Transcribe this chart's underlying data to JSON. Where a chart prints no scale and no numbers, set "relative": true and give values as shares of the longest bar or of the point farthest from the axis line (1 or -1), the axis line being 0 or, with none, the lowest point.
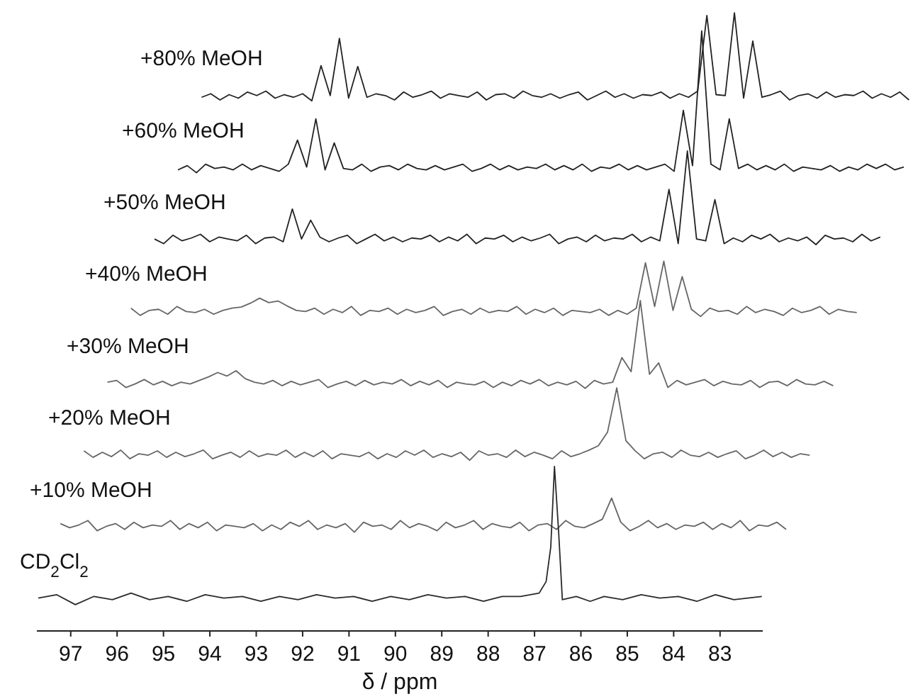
{
  "chart_data": [
    {
      "type": "line",
      "relative": true,
      "tick_labels": false,
      "categories": [
        null,
        null,
        null,
        null,
        null,
        null,
        null,
        null,
        null,
        null,
        null,
        null,
        null,
        null,
        null,
        null,
        null,
        null,
        null,
        null,
        null,
        null,
        null,
        null,
        null,
        null,
        null,
        null,
        null,
        null,
        null,
        null,
        null,
        null,
        null,
        null,
        null,
        null,
        null,
        null,
        null,
        null,
        null,
        null,
        null,
        null,
        null,
        null,
        null,
        null,
        null,
        null,
        null,
        null,
        null,
        null,
        null,
        null,
        null,
        null,
        null,
        null,
        null,
        null,
        null,
        null,
        null,
        null,
        null,
        null,
        null,
        null,
        null,
        null,
        null,
        null,
        null,
        null
      ],
      "series": [
        {
          "name": "+80% MeOH",
          "color": "#222222",
          "values": [
            0.04,
            0.08,
            0.01,
            0.07,
            0.03,
            0.1,
            0.06,
            0.11,
            0.03,
            0.07,
            0.04,
            0.08,
            0,
            0.4,
            0.06,
            0.71,
            0.03,
            0.39,
            0.04,
            0.08,
            0.06,
            0.01,
            0.1,
            0.04,
            0.07,
            0.11,
            0.03,
            0.08,
            0.06,
            0.04,
            0.1,
            0.01,
            0.07,
            0.08,
            0.03,
            0.11,
            0.06,
            0.04,
            0.08,
            0.03,
            0.07,
            0.1,
            0.01,
            0.06,
            0.11,
            0.04,
            0.08,
            0.03,
            0.07,
            0.06,
            0.1,
            0.03,
            0.08,
            0.04,
            0.11,
            0.97,
            0.07,
            0.06,
            1,
            0.03,
            0.68,
            0.04,
            0.07,
            0.11,
            0.01,
            0.06,
            0.08,
            0.03,
            0.1,
            0.04,
            0.07,
            0.06,
            0.11,
            0.03,
            0.08,
            0.04,
            0.1,
            0.01
          ]
        }
      ]
    },
    {
      "type": "line",
      "relative": true,
      "tick_labels": false,
      "categories": [
        null,
        null,
        null,
        null,
        null,
        null,
        null,
        null,
        null,
        null,
        null,
        null,
        null,
        null,
        null,
        null,
        null,
        null,
        null,
        null,
        null,
        null,
        null,
        null,
        null,
        null,
        null,
        null,
        null,
        null,
        null,
        null,
        null,
        null,
        null,
        null,
        null,
        null,
        null,
        null,
        null,
        null,
        null,
        null,
        null,
        null,
        null,
        null,
        null,
        null,
        null,
        null,
        null,
        null,
        null,
        null,
        null,
        null,
        null,
        null,
        null,
        null,
        null,
        null,
        null,
        null,
        null,
        null,
        null,
        null,
        null,
        null,
        null,
        null,
        null,
        null,
        null,
        null,
        null,
        null
      ],
      "series": [
        {
          "name": "+60% MeOH",
          "color": "#222222",
          "values": [
            0.02,
            0.05,
            0,
            0.06,
            0.03,
            0.04,
            0.02,
            0.06,
            0.02,
            0.05,
            0.03,
            0.01,
            0.06,
            0.23,
            0.04,
            0.38,
            0.02,
            0.21,
            0.03,
            0.02,
            0.06,
            0.01,
            0.04,
            0.05,
            0.02,
            0.06,
            0.03,
            0.02,
            0.05,
            0.02,
            0.04,
            0.06,
            0.01,
            0.03,
            0.06,
            0.02,
            0.05,
            0.02,
            0.04,
            0.03,
            0.06,
            0.02,
            0.05,
            0.02,
            0.06,
            0.01,
            0.04,
            0.03,
            0.06,
            0.02,
            0.05,
            0.02,
            0.04,
            0.06,
            0.01,
            0.44,
            0.05,
            1,
            0.06,
            0.02,
            0.38,
            0.03,
            0.06,
            0.02,
            0.05,
            0.02,
            0.06,
            0.01,
            0.04,
            0.03,
            0.02,
            0.05,
            0.01,
            0.04,
            0.02,
            0.06,
            0.03,
            0.06,
            0.02,
            0.04
          ]
        }
      ]
    },
    {
      "type": "line",
      "relative": true,
      "tick_labels": false,
      "categories": [
        null,
        null,
        null,
        null,
        null,
        null,
        null,
        null,
        null,
        null,
        null,
        null,
        null,
        null,
        null,
        null,
        null,
        null,
        null,
        null,
        null,
        null,
        null,
        null,
        null,
        null,
        null,
        null,
        null,
        null,
        null,
        null,
        null,
        null,
        null,
        null,
        null,
        null,
        null,
        null,
        null,
        null,
        null,
        null,
        null,
        null,
        null,
        null,
        null,
        null,
        null,
        null,
        null,
        null,
        null,
        null,
        null,
        null,
        null,
        null,
        null,
        null,
        null,
        null,
        null,
        null,
        null,
        null,
        null,
        null,
        null,
        null,
        null,
        null,
        null,
        null,
        null,
        null,
        null,
        null
      ],
      "series": [
        {
          "name": "+50% MeOH",
          "color": "#222222",
          "values": [
            0.06,
            0.01,
            0.1,
            0.04,
            0.07,
            0.11,
            0.03,
            0.08,
            0.06,
            0.04,
            0.1,
            0.01,
            0.07,
            0.08,
            0.03,
            0.38,
            0.06,
            0.26,
            0.08,
            0.03,
            0.07,
            0.1,
            0.01,
            0.06,
            0.11,
            0.04,
            0.08,
            0.03,
            0.07,
            0.06,
            0.1,
            0.03,
            0.08,
            0.04,
            0.11,
            0.01,
            0.07,
            0.06,
            0.1,
            0.03,
            0.08,
            0.04,
            0.07,
            0.11,
            0.01,
            0.06,
            0.08,
            0.03,
            0.1,
            0.04,
            0.07,
            0.06,
            0.11,
            0.03,
            0.08,
            0.04,
            0.59,
            0.01,
            1,
            0.06,
            0.04,
            0.48,
            0.01,
            0.07,
            0.03,
            0.1,
            0.06,
            0.11,
            0.03,
            0.07,
            0.04,
            0.08,
            0,
            0.1,
            0.06,
            0.07,
            0.03,
            0.11,
            0.04,
            0.08
          ]
        }
      ]
    },
    {
      "type": "line",
      "relative": true,
      "tick_labels": false,
      "categories": [
        null,
        null,
        null,
        null,
        null,
        null,
        null,
        null,
        null,
        null,
        null,
        null,
        null,
        null,
        null,
        null,
        null,
        null,
        null,
        null,
        null,
        null,
        null,
        null,
        null,
        null,
        null,
        null,
        null,
        null,
        null,
        null,
        null,
        null,
        null,
        null,
        null,
        null,
        null,
        null,
        null,
        null,
        null,
        null,
        null,
        null,
        null,
        null,
        null,
        null,
        null,
        null,
        null,
        null,
        null,
        null,
        null,
        null,
        null,
        null,
        null,
        null,
        null,
        null,
        null,
        null,
        null,
        null,
        null,
        null,
        null,
        null,
        null,
        null,
        null,
        null,
        null,
        null,
        null,
        null
      ],
      "series": [
        {
          "name": "+40% MeOH",
          "color": "#666666",
          "values": [
            0.15,
            0.02,
            0.11,
            0.13,
            0.04,
            0.18,
            0.09,
            0.07,
            0.13,
            0.04,
            0.11,
            0.15,
            0.17,
            0.24,
            0.33,
            0.25,
            0.28,
            0.19,
            0.11,
            0.09,
            0.15,
            0.04,
            0.13,
            0.07,
            0.18,
            0.02,
            0.11,
            0.09,
            0.15,
            0.04,
            0.13,
            0.07,
            0.11,
            0.18,
            0.02,
            0.09,
            0.13,
            0.04,
            0.15,
            0.07,
            0.11,
            0.09,
            0.18,
            0.04,
            0.13,
            0.07,
            0.15,
            0.02,
            0.11,
            0.09,
            0.07,
            0.13,
            0.02,
            0.11,
            0.04,
            0.15,
            0.97,
            0.18,
            1,
            0.11,
            0.72,
            0.13,
            0,
            0.15,
            0.09,
            0.11,
            0.04,
            0.18,
            0.07,
            0.13,
            0.09,
            0.02,
            0.15,
            0.07,
            0.11,
            0.18,
            0.04,
            0.13,
            0.09,
            0.07
          ]
        }
      ]
    },
    {
      "type": "line",
      "relative": true,
      "tick_labels": false,
      "categories": [
        null,
        null,
        null,
        null,
        null,
        null,
        null,
        null,
        null,
        null,
        null,
        null,
        null,
        null,
        null,
        null,
        null,
        null,
        null,
        null,
        null,
        null,
        null,
        null,
        null,
        null,
        null,
        null,
        null,
        null,
        null,
        null,
        null,
        null,
        null,
        null,
        null,
        null,
        null,
        null,
        null,
        null,
        null,
        null,
        null,
        null,
        null,
        null,
        null,
        null,
        null,
        null,
        null,
        null,
        null,
        null,
        null,
        null,
        null,
        null,
        null,
        null,
        null,
        null,
        null,
        null,
        null,
        null,
        null,
        null,
        null,
        null,
        null,
        null,
        null,
        null,
        null,
        null,
        null,
        null
      ],
      "series": [
        {
          "name": "+30% MeOH",
          "color": "#666666",
          "values": [
            0.07,
            0.09,
            0.01,
            0.05,
            0.1,
            0.04,
            0.08,
            0.03,
            0.07,
            0.05,
            0.09,
            0.13,
            0.18,
            0.14,
            0.2,
            0.11,
            0.07,
            0.05,
            0.09,
            0.03,
            0.08,
            0.04,
            0.07,
            0.1,
            0.01,
            0.05,
            0.08,
            0.03,
            0.09,
            0.04,
            0.07,
            0.05,
            0.1,
            0.03,
            0.08,
            0.04,
            0.09,
            0.01,
            0.07,
            0.05,
            0.04,
            0.08,
            0.01,
            0.07,
            0.03,
            0.09,
            0.05,
            0.1,
            0.03,
            0.07,
            0.04,
            0.08,
            0,
            0.09,
            0.05,
            0.07,
            0.35,
            0.19,
            1,
            0.16,
            0.29,
            0.01,
            0.09,
            0.04,
            0.07,
            0.1,
            0.03,
            0.08,
            0.05,
            0.04,
            0.09,
            0.01,
            0.07,
            0.08,
            0.03,
            0.1,
            0.05,
            0.04,
            0.08,
            0.03
          ]
        }
      ]
    },
    {
      "type": "line",
      "relative": true,
      "tick_labels": false,
      "categories": [
        null,
        null,
        null,
        null,
        null,
        null,
        null,
        null,
        null,
        null,
        null,
        null,
        null,
        null,
        null,
        null,
        null,
        null,
        null,
        null,
        null,
        null,
        null,
        null,
        null,
        null,
        null,
        null,
        null,
        null,
        null,
        null,
        null,
        null,
        null,
        null,
        null,
        null,
        null,
        null,
        null,
        null,
        null,
        null,
        null,
        null,
        null,
        null,
        null,
        null,
        null,
        null,
        null,
        null,
        null,
        null,
        null,
        null,
        null,
        null,
        null,
        null,
        null,
        null,
        null,
        null,
        null,
        null,
        null,
        null,
        null,
        null,
        null,
        null,
        null,
        null,
        null,
        null,
        null,
        null
      ],
      "series": [
        {
          "name": "+20% MeOH",
          "color": "#666666",
          "values": [
            0.13,
            0.04,
            0.11,
            0.05,
            0.14,
            0.02,
            0.09,
            0.07,
            0.13,
            0.04,
            0.11,
            0.05,
            0.09,
            0.14,
            0.02,
            0.07,
            0.11,
            0.04,
            0.13,
            0.05,
            0.09,
            0.07,
            0.14,
            0.04,
            0.11,
            0.05,
            0.13,
            0.02,
            0.09,
            0.07,
            0.05,
            0.11,
            0.02,
            0.09,
            0.04,
            0.13,
            0.07,
            0.14,
            0.04,
            0.09,
            0.05,
            0.11,
            0,
            0.13,
            0.07,
            0.09,
            0.04,
            0.14,
            0.05,
            0.11,
            0.07,
            0.02,
            0.13,
            0.05,
            0.09,
            0.14,
            0.2,
            0.39,
            1,
            0.27,
            0.13,
            0.02,
            0.09,
            0.11,
            0.04,
            0.14,
            0.07,
            0.05,
            0.11,
            0.04,
            0.09,
            0.13,
            0.02,
            0.07,
            0.14,
            0.05,
            0.11,
            0.04,
            0.09,
            0.07
          ]
        }
      ]
    },
    {
      "type": "line",
      "relative": true,
      "tick_labels": false,
      "categories": [
        null,
        null,
        null,
        null,
        null,
        null,
        null,
        null,
        null,
        null,
        null,
        null,
        null,
        null,
        null,
        null,
        null,
        null,
        null,
        null,
        null,
        null,
        null,
        null,
        null,
        null,
        null,
        null,
        null,
        null,
        null,
        null,
        null,
        null,
        null,
        null,
        null,
        null,
        null,
        null,
        null,
        null,
        null,
        null,
        null,
        null,
        null,
        null,
        null,
        null,
        null,
        null,
        null,
        null,
        null,
        null,
        null,
        null,
        null,
        null,
        null,
        null,
        null,
        null,
        null,
        null,
        null,
        null,
        null,
        null,
        null,
        null,
        null,
        null,
        null,
        null,
        null,
        null,
        null,
        null
      ],
      "series": [
        {
          "name": "+10% MeOH",
          "color": "#666666",
          "values": [
            0.25,
            0.13,
            0.21,
            0.34,
            0.04,
            0.17,
            0.25,
            0.08,
            0.29,
            0.13,
            0.21,
            0.17,
            0.34,
            0.08,
            0.25,
            0.13,
            0.29,
            0.04,
            0.21,
            0.17,
            0.13,
            0.25,
            0.04,
            0.21,
            0.08,
            0.29,
            0.17,
            0.34,
            0.08,
            0.21,
            0.13,
            0.25,
            0,
            0.29,
            0.17,
            0.21,
            0.08,
            0.34,
            0.13,
            0.25,
            0.17,
            0.04,
            0.29,
            0.13,
            0.21,
            0.34,
            0.08,
            0.25,
            0.17,
            0.13,
            0.29,
            0.04,
            0.21,
            0.25,
            0.08,
            0.34,
            0.17,
            0.13,
            0.25,
            0.38,
            1,
            0.29,
            0.04,
            0.17,
            0.34,
            0.13,
            0.25,
            0.08,
            0.21,
            0.17,
            0.29,
            0.08,
            0.25,
            0.13,
            0.34,
            0.04,
            0.21,
            0.17,
            0.29,
            0.08
          ]
        }
      ]
    },
    {
      "type": "line",
      "relative": true,
      "xlim": [
        97.73,
        82.08
      ],
      "xticks": [
        97,
        96,
        95,
        94,
        93,
        92,
        91,
        90,
        89,
        88,
        87,
        86,
        85,
        84,
        83
      ],
      "xlabel": "δ / ppm",
      "series": [
        {
          "name": "CD$_{2}$Cl$_{2}$",
          "color": "#2a2a2a",
          "x": [
            97.7,
            97.3,
            96.9,
            96.5,
            96.1,
            95.7,
            95.3,
            94.9,
            94.5,
            94.1,
            93.7,
            93.3,
            92.9,
            92.5,
            92.1,
            91.7,
            91.3,
            90.9,
            90.5,
            90.1,
            89.7,
            89.3,
            88.9,
            88.5,
            88.1,
            87.7,
            87.3,
            86.9,
            86.75,
            86.65,
            86.57,
            86.48,
            86.4,
            86.1,
            85.8,
            85.5,
            85.1,
            84.7,
            84.3,
            83.9,
            83.5,
            83.1,
            82.7,
            82.1
          ],
          "values": [
            0.2,
            0.22,
            0.16,
            0.21,
            0.19,
            0.23,
            0.19,
            0.21,
            0.18,
            0.22,
            0.2,
            0.21,
            0.18,
            0.21,
            0.19,
            0.22,
            0.2,
            0.21,
            0.18,
            0.21,
            0.19,
            0.22,
            0.2,
            0.21,
            0.18,
            0.21,
            0.21,
            0.23,
            0.3,
            0.51,
            1,
            0.6,
            0.19,
            0.21,
            0.18,
            0.21,
            0.19,
            0.22,
            0.2,
            0.21,
            0.18,
            0.22,
            0.19,
            0.21
          ]
        }
      ]
    }
  ]
}
